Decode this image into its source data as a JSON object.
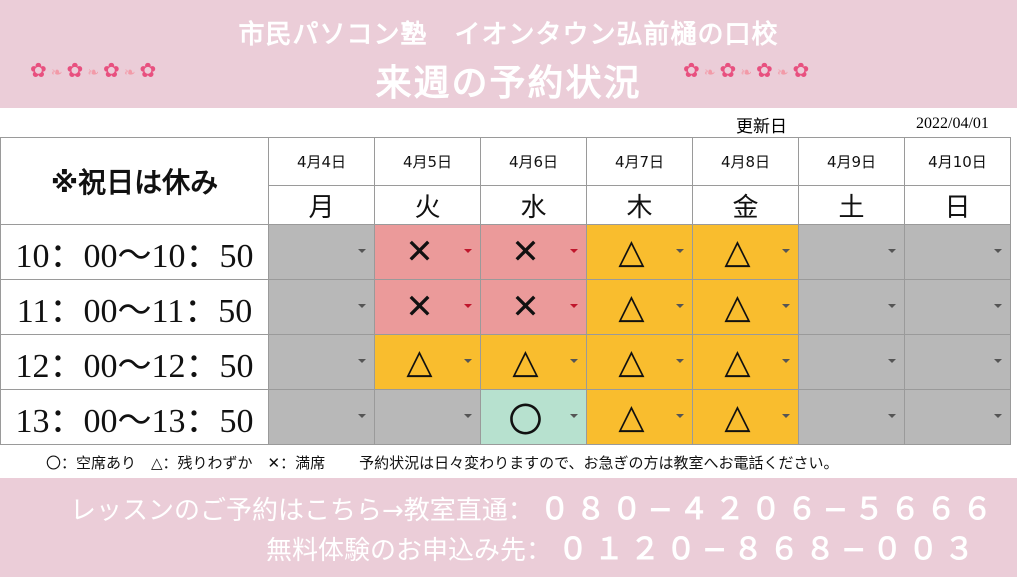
{
  "header": {
    "school": "市民パソコン塾　イオンタウン弘前樋の口校",
    "title": "来週の予約状況"
  },
  "updated": {
    "label": "更新日",
    "date": "2022/04/01"
  },
  "table": {
    "corner": "※祝日は休み",
    "columns": [
      {
        "date": "4月4日",
        "day": "月"
      },
      {
        "date": "4月5日",
        "day": "火"
      },
      {
        "date": "4月6日",
        "day": "水"
      },
      {
        "date": "4月7日",
        "day": "木"
      },
      {
        "date": "4月8日",
        "day": "金"
      },
      {
        "date": "4月9日",
        "day": "土"
      },
      {
        "date": "4月10日",
        "day": "日"
      }
    ],
    "rows": [
      {
        "time": "10：00〜10：50",
        "cells": [
          {
            "mark": "",
            "color": "gray"
          },
          {
            "mark": "✕",
            "color": "pink"
          },
          {
            "mark": "✕",
            "color": "pink"
          },
          {
            "mark": "△",
            "color": "orange"
          },
          {
            "mark": "△",
            "color": "orange"
          },
          {
            "mark": "",
            "color": "gray"
          },
          {
            "mark": "",
            "color": "gray"
          }
        ]
      },
      {
        "time": "11：00〜11：50",
        "cells": [
          {
            "mark": "",
            "color": "gray"
          },
          {
            "mark": "✕",
            "color": "pink"
          },
          {
            "mark": "✕",
            "color": "pink"
          },
          {
            "mark": "△",
            "color": "orange"
          },
          {
            "mark": "△",
            "color": "orange"
          },
          {
            "mark": "",
            "color": "gray"
          },
          {
            "mark": "",
            "color": "gray"
          }
        ]
      },
      {
        "time": "12：00〜12：50",
        "cells": [
          {
            "mark": "",
            "color": "gray"
          },
          {
            "mark": "△",
            "color": "orange"
          },
          {
            "mark": "△",
            "color": "orange"
          },
          {
            "mark": "△",
            "color": "orange"
          },
          {
            "mark": "△",
            "color": "orange"
          },
          {
            "mark": "",
            "color": "gray"
          },
          {
            "mark": "",
            "color": "gray"
          }
        ]
      },
      {
        "time": "13：00〜13：50",
        "cells": [
          {
            "mark": "",
            "color": "gray"
          },
          {
            "mark": "",
            "color": "gray"
          },
          {
            "mark": "〇",
            "color": "green"
          },
          {
            "mark": "△",
            "color": "orange"
          },
          {
            "mark": "△",
            "color": "orange"
          },
          {
            "mark": "",
            "color": "gray"
          },
          {
            "mark": "",
            "color": "gray"
          }
        ]
      }
    ]
  },
  "legend": {
    "key": "〇：空席あり　△：残りわずか　✕：満席",
    "note": "予約状況は日々変わりますので、お急ぎの方は教室へお電話ください。"
  },
  "footer": {
    "lesson_label": "レッスンのご予約はこちら→教室直通：",
    "lesson_number": "０８０−４２０６−５６６６",
    "trial_label": "無料体験のお申込み先：",
    "trial_number": "０１２０−８６８−００３"
  },
  "colors": {
    "header_bg": "#ebcdd8",
    "gray": "#b8b8b8",
    "pink": "#eb9a9a",
    "orange": "#f9bd2e",
    "green": "#b7e1cf",
    "flower": "#e8507f"
  },
  "icons": [
    "sakura-flower-icon",
    "dropdown-arrow-icon"
  ]
}
